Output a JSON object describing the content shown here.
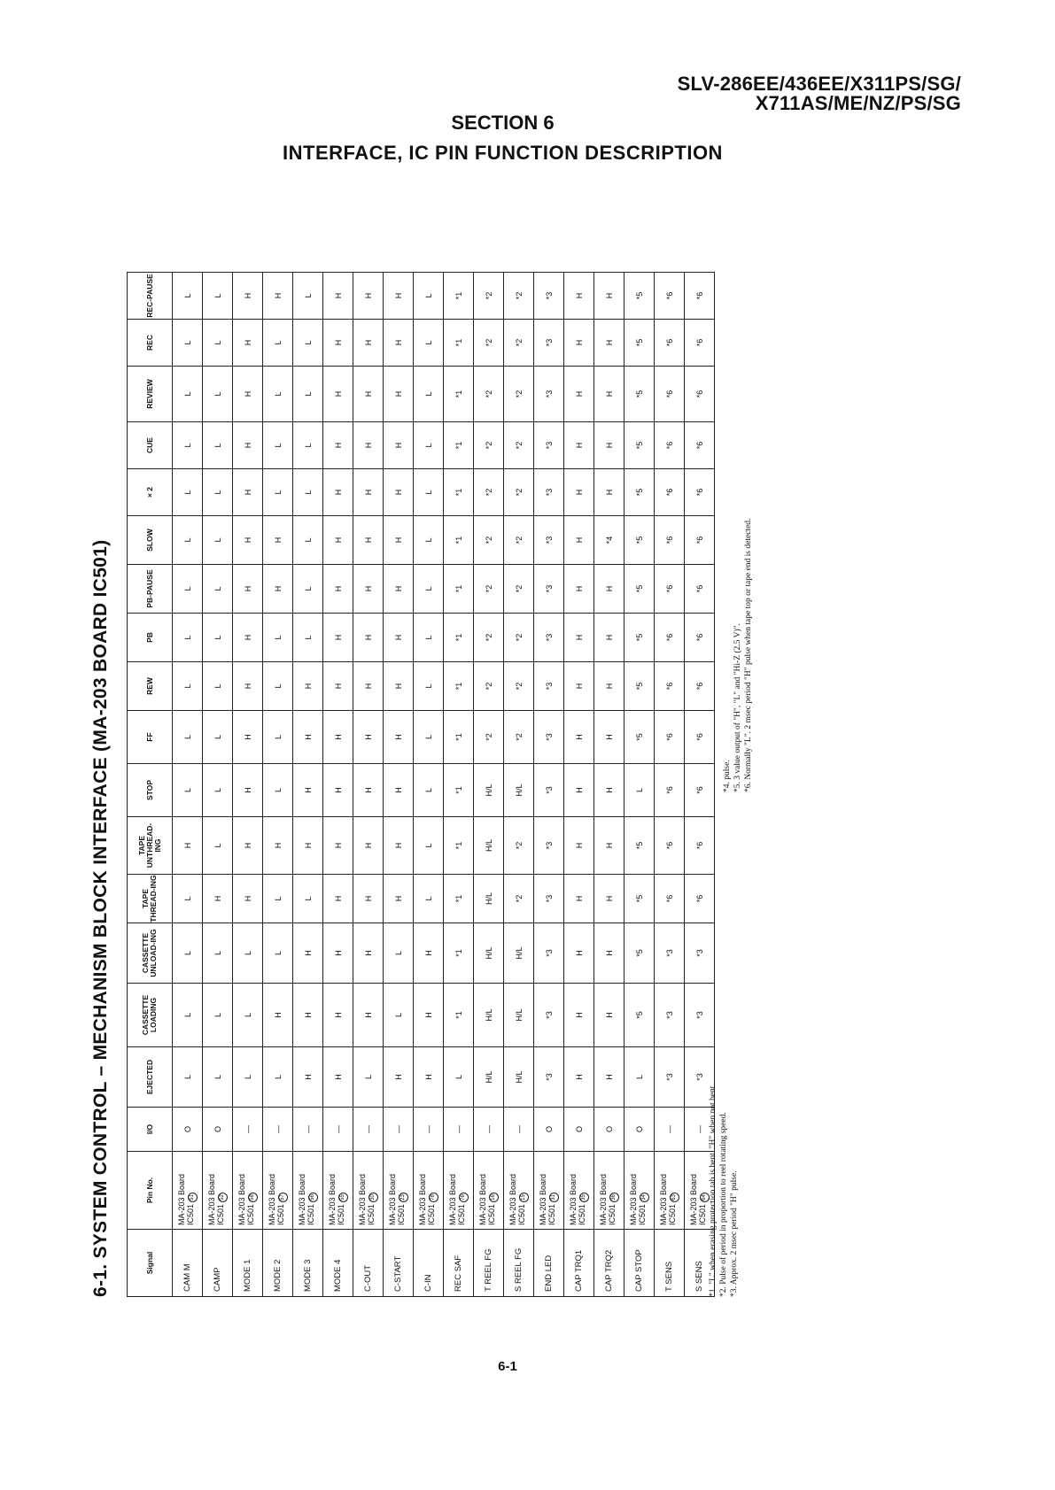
{
  "header": {
    "model_line1": "SLV-286EE/436EE/X311PS/SG/",
    "model_line2": "X711AS/ME/NZ/PS/SG",
    "section": "SECTION 6",
    "section_title": "INTERFACE, IC PIN FUNCTION DESCRIPTION"
  },
  "table_title": "6-1.  SYSTEM CONTROL – MECHANISM BLOCK INTERFACE (MA-203 BOARD IC501)",
  "columns": [
    "Signal",
    "Pin No.",
    "I/O",
    "EJECTED",
    "CASSETTE LOADING",
    "CASSETTE UNLOAD-ING",
    "TAPE THREAD-ING",
    "TAPE UNTHREAD-ING",
    "STOP",
    "FF",
    "REW",
    "PB",
    "PB-PAUSE",
    "SLOW",
    "× 2",
    "CUE",
    "REVIEW",
    "REC",
    "REC-PAUSE"
  ],
  "rows": [
    {
      "signal": "CAM M",
      "pin": "MA-203 Board IC501",
      "pin_no": "51",
      "io": "O",
      "values": [
        "L",
        "L",
        "L",
        "L",
        "H",
        "L",
        "L",
        "L",
        "L",
        "L",
        "L",
        "L",
        "L",
        "L",
        "L",
        "L"
      ]
    },
    {
      "signal": "CAMP",
      "pin": "MA-203 Board IC501",
      "pin_no": "52",
      "io": "O",
      "values": [
        "L",
        "L",
        "L",
        "H",
        "L",
        "L",
        "L",
        "L",
        "L",
        "L",
        "L",
        "L",
        "L",
        "L",
        "L",
        "L"
      ]
    },
    {
      "signal": "MODE 1",
      "pin": "MA-203 Board IC501",
      "pin_no": "58",
      "io": "I",
      "values": [
        "L",
        "L",
        "L",
        "H",
        "H",
        "H",
        "H",
        "H",
        "H",
        "H",
        "H",
        "H",
        "H",
        "H",
        "H",
        "H"
      ]
    },
    {
      "signal": "MODE 2",
      "pin": "MA-203 Board IC501",
      "pin_no": "57",
      "io": "I",
      "values": [
        "L",
        "H",
        "L",
        "L",
        "H",
        "L",
        "L",
        "L",
        "L",
        "H",
        "H",
        "L",
        "L",
        "L",
        "L",
        "H"
      ]
    },
    {
      "signal": "MODE 3",
      "pin": "MA-203 Board IC501",
      "pin_no": "56",
      "io": "I",
      "values": [
        "H",
        "H",
        "H",
        "L",
        "H",
        "H",
        "H",
        "H",
        "L",
        "L",
        "L",
        "L",
        "L",
        "L",
        "L",
        "L"
      ]
    },
    {
      "signal": "MODE 4",
      "pin": "MA-203 Board IC501",
      "pin_no": "55",
      "io": "I",
      "values": [
        "H",
        "H",
        "H",
        "H",
        "H",
        "H",
        "H",
        "H",
        "H",
        "H",
        "H",
        "H",
        "H",
        "H",
        "H",
        "H"
      ]
    },
    {
      "signal": "C-OUT",
      "pin": "MA-203 Board IC501",
      "pin_no": "30",
      "io": "I",
      "values": [
        "L",
        "H",
        "H",
        "H",
        "H",
        "H",
        "H",
        "H",
        "H",
        "H",
        "H",
        "H",
        "H",
        "H",
        "H",
        "H"
      ]
    },
    {
      "signal": "C-START",
      "pin": "MA-203 Board IC501",
      "pin_no": "23",
      "io": "I",
      "values": [
        "H",
        "L",
        "L",
        "H",
        "H",
        "H",
        "H",
        "H",
        "H",
        "H",
        "H",
        "H",
        "H",
        "H",
        "H",
        "H"
      ]
    },
    {
      "signal": "C-IN",
      "pin": "MA-203 Board IC501",
      "pin_no": "78",
      "io": "I",
      "values": [
        "H",
        "H",
        "H",
        "L",
        "L",
        "L",
        "L",
        "L",
        "L",
        "L",
        "L",
        "L",
        "L",
        "L",
        "L",
        "L"
      ]
    },
    {
      "signal": "REC SAF",
      "pin": "MA-203 Board IC501",
      "pin_no": "76",
      "io": "I",
      "values": [
        "L",
        "*1",
        "*1",
        "*1",
        "*1",
        "*1",
        "*1",
        "*1",
        "*1",
        "*1",
        "*1",
        "*1",
        "*1",
        "*1",
        "*1",
        "*1"
      ]
    },
    {
      "signal": "T REEL FG",
      "pin": "MA-203 Board IC501",
      "pin_no": "16",
      "io": "I",
      "values": [
        "H/L",
        "H/L",
        "H/L",
        "H/L",
        "H/L",
        "H/L",
        "*2",
        "*2",
        "*2",
        "*2",
        "*2",
        "*2",
        "*2",
        "*2",
        "*2",
        "*2"
      ]
    },
    {
      "signal": "S REEL FG",
      "pin": "MA-203 Board IC501",
      "pin_no": "15",
      "io": "I",
      "values": [
        "H/L",
        "H/L",
        "H/L",
        "*2",
        "*2",
        "H/L",
        "*2",
        "*2",
        "*2",
        "*2",
        "*2",
        "*2",
        "*2",
        "*2",
        "*2",
        "*2"
      ]
    },
    {
      "signal": "END LED",
      "pin": "MA-203 Board IC501",
      "pin_no": "31",
      "io": "O",
      "values": [
        "*3",
        "*3",
        "*3",
        "*3",
        "*3",
        "*3",
        "*3",
        "*3",
        "*3",
        "*3",
        "*3",
        "*3",
        "*3",
        "*3",
        "*3",
        "*3"
      ]
    },
    {
      "signal": "CAP TRQ1",
      "pin": "MA-203 Board IC501",
      "pin_no": "35",
      "io": "O",
      "values": [
        "H",
        "H",
        "H",
        "H",
        "H",
        "H",
        "H",
        "H",
        "H",
        "H",
        "H",
        "H",
        "H",
        "H",
        "H",
        "H"
      ]
    },
    {
      "signal": "CAP TRQ2",
      "pin": "MA-203 Board IC501",
      "pin_no": "36",
      "io": "O",
      "values": [
        "H",
        "H",
        "H",
        "H",
        "H",
        "H",
        "H",
        "H",
        "H",
        "H",
        "*4",
        "H",
        "H",
        "H",
        "H",
        "H"
      ]
    },
    {
      "signal": "CAP STOP",
      "pin": "MA-203 Board IC501",
      "pin_no": "34",
      "io": "O",
      "values": [
        "L",
        "*5",
        "*5",
        "*5",
        "*5",
        "L",
        "*5",
        "*5",
        "*5",
        "*5",
        "*5",
        "*5",
        "*5",
        "*5",
        "*5",
        "*5"
      ]
    },
    {
      "signal": "T SENS",
      "pin": "MA-203 Board IC501",
      "pin_no": "63",
      "io": "I",
      "values": [
        "*3",
        "*3",
        "*3",
        "*6",
        "*6",
        "*6",
        "*6",
        "*6",
        "*6",
        "*6",
        "*6",
        "*6",
        "*6",
        "*6",
        "*6",
        "*6"
      ]
    },
    {
      "signal": "S SENS",
      "pin": "MA-203 Board IC501",
      "pin_no": "64",
      "io": "I",
      "values": [
        "*3",
        "*3",
        "*3",
        "*6",
        "*6",
        "*6",
        "*6",
        "*6",
        "*6",
        "*6",
        "*6",
        "*6",
        "*6",
        "*6",
        "*6",
        "*6"
      ]
    }
  ],
  "io_symbols": {
    "O": "O",
    "I": "—"
  },
  "footnotes": [
    "*1.  \"L\" when erasing protection tab is bent. \"H\" when not bent.",
    "*2.  Pulse of period in proportion to reel rotating speed.",
    "*3.  Approx. 2 msec period \"H\" pulse.",
    "*4.  pulse.",
    "*5.  3 value output of \"H\", \"L\" and \"Hi-Z (2.5 V)\".",
    "*6.  Normally \"L\". 2 msec period \"H\" pulse when tape top or tape end is detected."
  ],
  "page_number": "6-1"
}
